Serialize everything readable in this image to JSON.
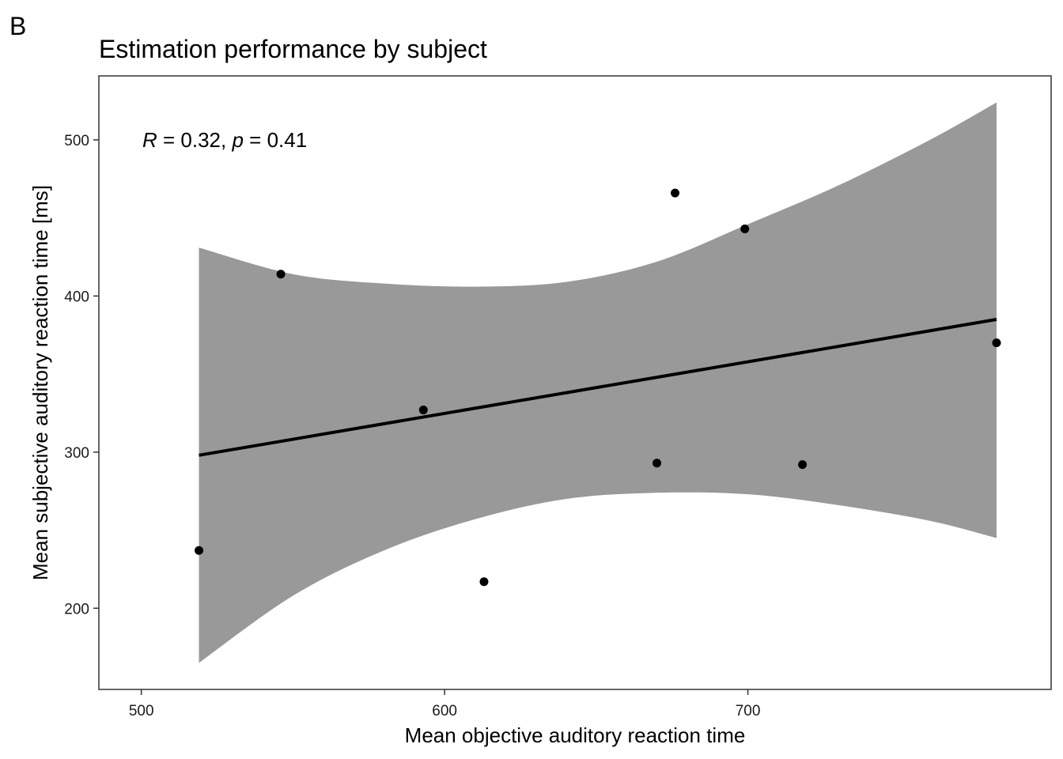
{
  "chart_data": {
    "type": "scatter",
    "panel_tag": "B",
    "title": "Estimation performance by subject",
    "xlabel": "Mean objective auditory reaction time",
    "ylabel": "Mean subjective auditory reaction time [ms]",
    "xlim": [
      486,
      800
    ],
    "ylim": [
      148,
      541
    ],
    "xticks": [
      500,
      600,
      700
    ],
    "yticks": [
      200,
      300,
      400,
      500
    ],
    "grid": false,
    "annotation": {
      "r_symbol": "R",
      "r_text": " = 0.32, ",
      "p_symbol": "p",
      "p_text": " = 0.41"
    },
    "points": [
      {
        "x": 519,
        "y": 237
      },
      {
        "x": 546,
        "y": 414
      },
      {
        "x": 593,
        "y": 327
      },
      {
        "x": 613,
        "y": 217
      },
      {
        "x": 670,
        "y": 293
      },
      {
        "x": 676,
        "y": 466
      },
      {
        "x": 699,
        "y": 443
      },
      {
        "x": 718,
        "y": 292
      },
      {
        "x": 782,
        "y": 370
      }
    ],
    "fit_line": {
      "x": [
        519,
        782
      ],
      "y": [
        298,
        385
      ]
    },
    "confidence_band": {
      "x": [
        519,
        550,
        580,
        610,
        640,
        670,
        700,
        730,
        760,
        782
      ],
      "upper": [
        431,
        414,
        408,
        406,
        409,
        422,
        446,
        471,
        500,
        524
      ],
      "lower": [
        165,
        208,
        237,
        257,
        270,
        274,
        273,
        266,
        256,
        245
      ]
    },
    "colors": {
      "points": "#000000",
      "line": "#000000",
      "band": "#999999",
      "frame": "#333333"
    }
  }
}
